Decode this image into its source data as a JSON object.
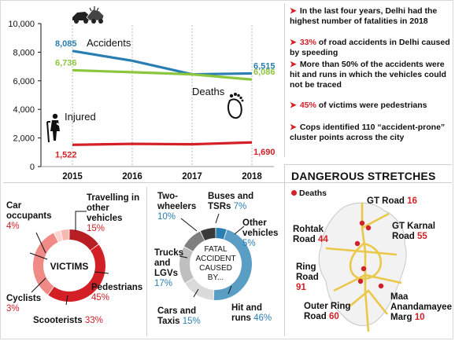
{
  "line_chart": {
    "chart_data": {
      "type": "line",
      "x": [
        "2015",
        "2016",
        "2017",
        "2018"
      ],
      "ylim": [
        0,
        10000
      ],
      "yticks": [
        "0",
        "2,000",
        "4,000",
        "6,000",
        "8,000",
        "10,000"
      ],
      "series": [
        {
          "name": "Accidents",
          "values": [
            8085,
            7400,
            6450,
            6515
          ],
          "color": "#2a7fb2",
          "labels": [
            "8,085",
            "6,515"
          ]
        },
        {
          "name": "Deaths",
          "values": [
            1522,
            1590,
            1560,
            1690
          ],
          "color": "#d31f26",
          "labels": [
            "1,522",
            "1,690"
          ]
        },
        {
          "name": "Injured",
          "values": [
            6736,
            6600,
            6450,
            6086
          ],
          "color": "#8cc63f",
          "labels": [
            "6,736",
            "6,086"
          ]
        }
      ]
    }
  },
  "facts": [
    {
      "lead": "",
      "text": "In the last four years, Delhi had the highest number of fatalities in 2018"
    },
    {
      "lead": "33%",
      "text": " of road accidents in Delhi caused by speeding"
    },
    {
      "lead": "",
      "text": "More than 50% of the accidents were hit and runs in which the vehicles could not be traced"
    },
    {
      "lead": "45%",
      "text": " of victims were pedestrians"
    },
    {
      "lead": "",
      "text": "Cops identified 110 “accident-prone” cluster points across the city"
    }
  ],
  "victims": {
    "center": "VICTIMS",
    "chart_data": {
      "type": "pie",
      "slices": [
        {
          "label": "Travelling in other vehicles",
          "value": 15,
          "pct": "15%",
          "color": "#b81f24"
        },
        {
          "label": "Pedestrians",
          "value": 45,
          "pct": "45%",
          "color": "#d31f26"
        },
        {
          "label": "Scooterists",
          "value": 33,
          "pct": "33%",
          "color": "#f08a86"
        },
        {
          "label": "Cyclists",
          "value": 3,
          "pct": "3%",
          "color": "#fbd3cf"
        },
        {
          "label": "Car occupants",
          "value": 4,
          "pct": "4%",
          "color": "#f9b8b1"
        }
      ]
    }
  },
  "fatal": {
    "center": [
      "FATAL",
      "ACCIDENT",
      "CAUSED",
      "BY..."
    ],
    "chart_data": {
      "type": "pie",
      "slices": [
        {
          "label": "Other vehicles",
          "value": 5,
          "pct": "5%",
          "color": "#2a7fb2"
        },
        {
          "label": "Hit and runs",
          "value": 46,
          "pct": "46%",
          "color": "#5a9ec5"
        },
        {
          "label": "Cars and Taxis",
          "value": 15,
          "pct": "15%",
          "color": "#dadada"
        },
        {
          "label": "Trucks and LGVs",
          "value": 17,
          "pct": "17%",
          "color": "#bfbfbf"
        },
        {
          "label": "Two-wheelers",
          "value": 10,
          "pct": "10%",
          "color": "#7f7f7f"
        },
        {
          "label": "Buses and TSRs",
          "value": 7,
          "pct": "7%",
          "color": "#3a3a3a"
        }
      ]
    }
  },
  "map": {
    "title": "DANGEROUS STRETCHES",
    "legend": "Deaths",
    "stretches": [
      {
        "name": "GT Road",
        "deaths": "16"
      },
      {
        "name": "GT Karnal Road",
        "deaths": "55"
      },
      {
        "name": "Rohtak Road",
        "deaths": "44"
      },
      {
        "name": "Ring Road",
        "deaths": "91"
      },
      {
        "name": "Outer Ring Road",
        "deaths": "60"
      },
      {
        "name": "Maa Anandamayee Marg",
        "deaths": "10"
      }
    ]
  }
}
